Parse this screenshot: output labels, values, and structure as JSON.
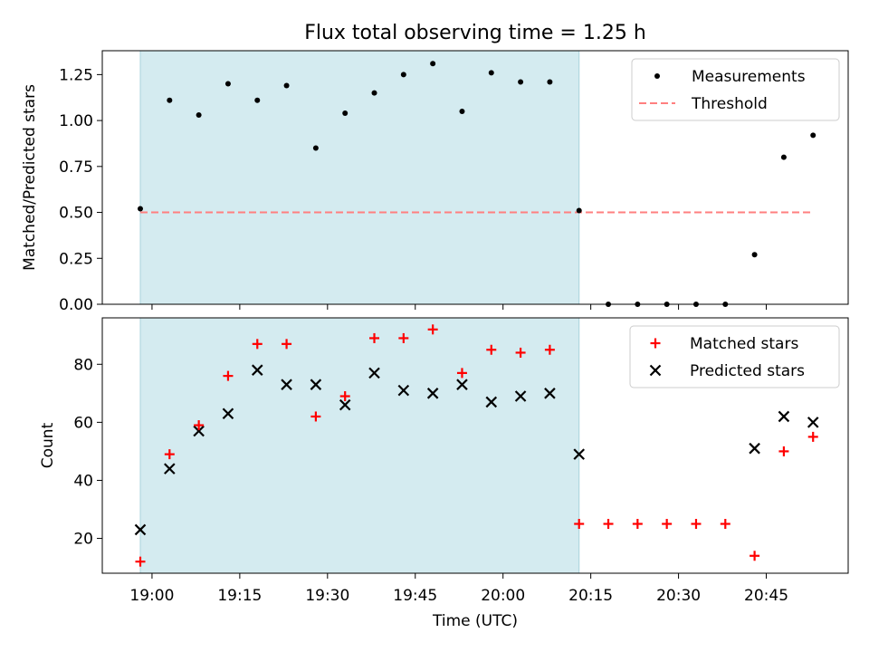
{
  "figure": {
    "title": "Flux total observing time = 1.25 h"
  },
  "chart_data": [
    {
      "type": "scatter",
      "ylabel": "Matched/Predicted stars",
      "ylim": [
        0,
        1.38
      ],
      "yticks": [
        0.0,
        0.25,
        0.5,
        0.75,
        1.0,
        1.25
      ],
      "ytick_labels": [
        "0.00",
        "0.25",
        "0.50",
        "0.75",
        "1.00",
        "1.25"
      ],
      "legend_position": "top-right",
      "shaded_region": {
        "start": "18:58",
        "end": "20:13",
        "color": "#d4ebf0"
      },
      "series": [
        {
          "name": "Measurements",
          "marker": "dot",
          "color": "#000000",
          "x": [
            "18:58",
            "19:03",
            "19:08",
            "19:13",
            "19:18",
            "19:23",
            "19:28",
            "19:33",
            "19:38",
            "19:43",
            "19:48",
            "19:53",
            "19:58",
            "20:03",
            "20:08",
            "20:13",
            "20:18",
            "20:23",
            "20:28",
            "20:33",
            "20:38",
            "20:43",
            "20:48",
            "20:53"
          ],
          "y": [
            0.52,
            1.11,
            1.03,
            1.2,
            1.11,
            1.19,
            0.85,
            1.04,
            1.15,
            1.25,
            1.31,
            1.05,
            1.26,
            1.21,
            1.21,
            0.51,
            0.0,
            0.0,
            0.0,
            0.0,
            0.0,
            0.27,
            0.8,
            0.92
          ]
        },
        {
          "name": "Threshold",
          "style": "dashed",
          "color": "#ff7f7f",
          "x": [
            "18:58",
            "20:53"
          ],
          "y": [
            0.5,
            0.5
          ]
        }
      ]
    },
    {
      "type": "scatter",
      "xlabel": "Time (UTC)",
      "ylabel": "Count",
      "ylim": [
        8,
        96
      ],
      "yticks": [
        20,
        40,
        60,
        80
      ],
      "ytick_labels": [
        "20",
        "40",
        "60",
        "80"
      ],
      "xticks": [
        "19:00",
        "19:15",
        "19:30",
        "19:45",
        "20:00",
        "20:15",
        "20:30",
        "20:45"
      ],
      "legend_position": "top-right",
      "shaded_region": {
        "start": "18:58",
        "end": "20:13",
        "color": "#d4ebf0"
      },
      "series": [
        {
          "name": "Matched stars",
          "marker": "plus",
          "color": "#ff0000",
          "x": [
            "18:58",
            "19:03",
            "19:08",
            "19:13",
            "19:18",
            "19:23",
            "19:28",
            "19:33",
            "19:38",
            "19:43",
            "19:48",
            "19:53",
            "19:58",
            "20:03",
            "20:08",
            "20:13",
            "20:18",
            "20:23",
            "20:28",
            "20:33",
            "20:38",
            "20:43",
            "20:48",
            "20:53"
          ],
          "y": [
            12,
            49,
            59,
            76,
            87,
            87,
            62,
            69,
            89,
            89,
            92,
            77,
            85,
            84,
            85,
            25,
            25,
            25,
            25,
            25,
            25,
            14,
            50,
            55
          ]
        },
        {
          "name": "Predicted stars",
          "marker": "x",
          "color": "#000000",
          "x": [
            "18:58",
            "19:03",
            "19:08",
            "19:13",
            "19:18",
            "19:23",
            "19:28",
            "19:33",
            "19:38",
            "19:43",
            "19:48",
            "19:53",
            "19:58",
            "20:03",
            "20:08",
            "20:13",
            "20:43",
            "20:48",
            "20:53"
          ],
          "y": [
            23,
            44,
            57,
            63,
            78,
            73,
            73,
            66,
            77,
            71,
            70,
            73,
            67,
            69,
            70,
            49,
            51,
            62,
            60
          ]
        }
      ]
    }
  ]
}
